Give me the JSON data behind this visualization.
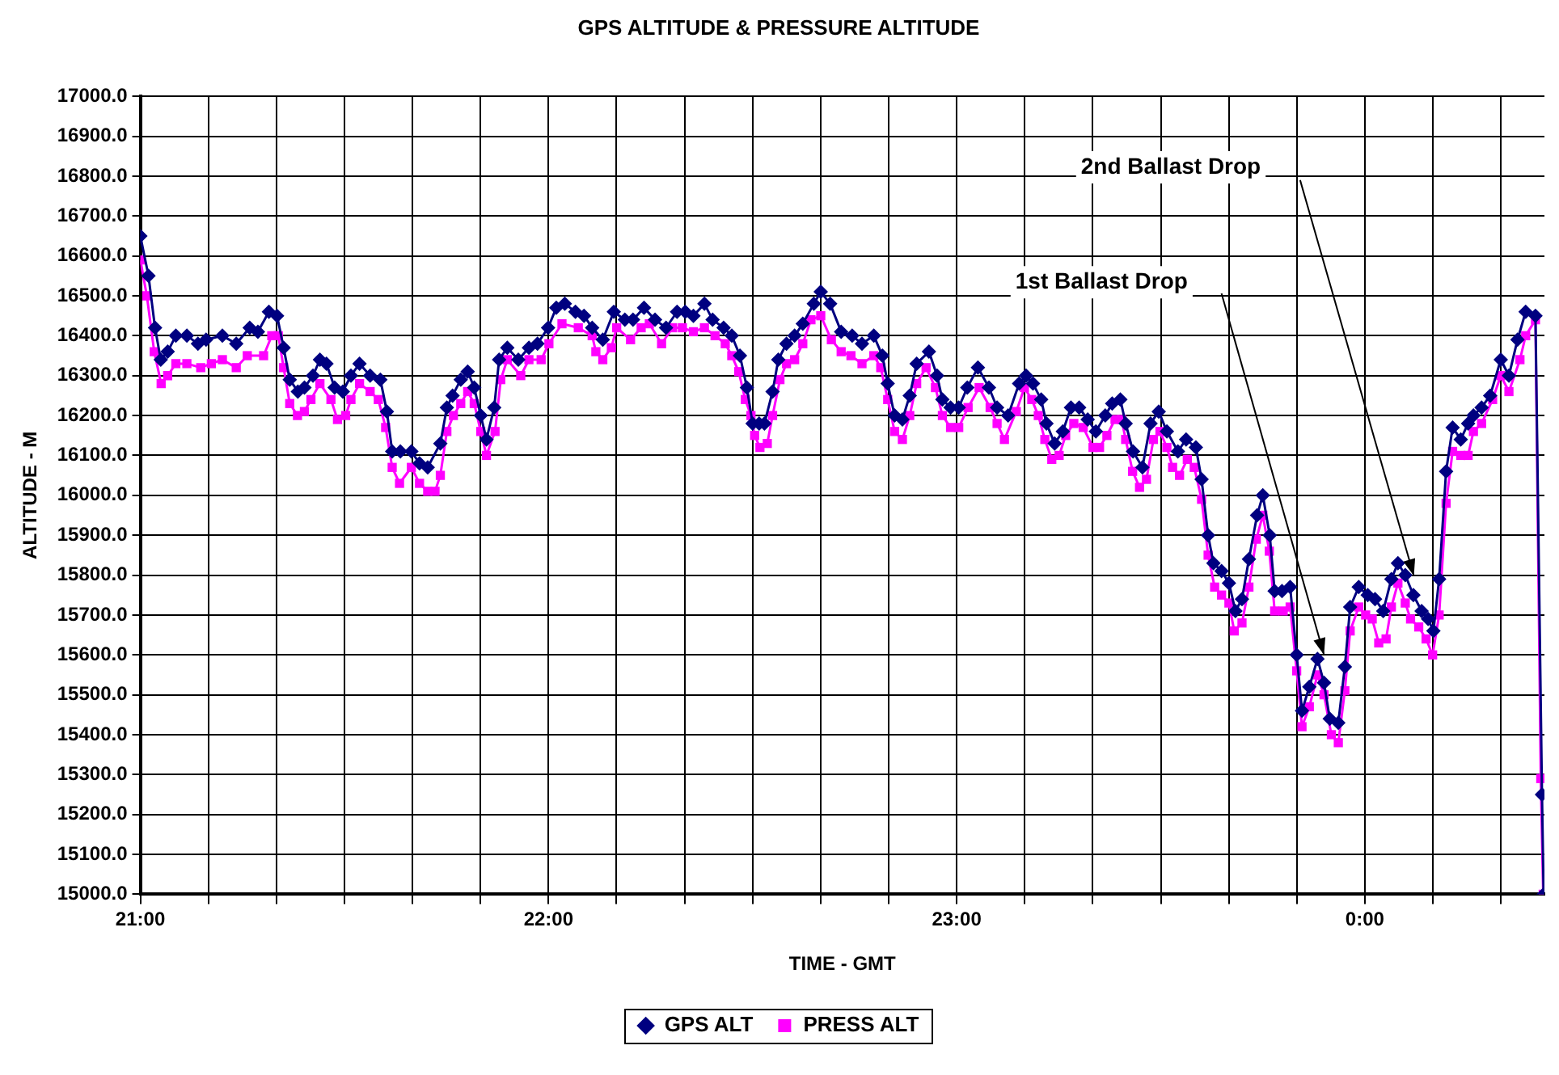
{
  "chart_data": {
    "type": "line",
    "title": "GPS ALTITUDE & PRESSURE ALTITUDE",
    "xlabel": "TIME - GMT",
    "ylabel": "ALTITUDE - M",
    "xlim": [
      21,
      24.44
    ],
    "ylim": [
      15000,
      17000
    ],
    "xticks": [
      {
        "value": 21,
        "label": "21:00"
      },
      {
        "value": 21.1667,
        "label": null
      },
      {
        "value": 21.3333,
        "label": null
      },
      {
        "value": 21.5,
        "label": null
      },
      {
        "value": 21.6667,
        "label": null
      },
      {
        "value": 21.8333,
        "label": null
      },
      {
        "value": 22,
        "label": "22:00"
      },
      {
        "value": 22.1667,
        "label": null
      },
      {
        "value": 22.3333,
        "label": null
      },
      {
        "value": 22.5,
        "label": null
      },
      {
        "value": 22.6667,
        "label": null
      },
      {
        "value": 22.8333,
        "label": null
      },
      {
        "value": 23,
        "label": "23:00"
      },
      {
        "value": 23.1667,
        "label": null
      },
      {
        "value": 23.3333,
        "label": null
      },
      {
        "value": 23.5,
        "label": null
      },
      {
        "value": 23.6667,
        "label": null
      },
      {
        "value": 23.8333,
        "label": null
      },
      {
        "value": 24,
        "label": "0:00"
      },
      {
        "value": 24.1667,
        "label": null
      },
      {
        "value": 24.3333,
        "label": null
      }
    ],
    "yticks": [
      {
        "value": 15000,
        "label": "15000.0"
      },
      {
        "value": 15100,
        "label": "15100.0"
      },
      {
        "value": 15200,
        "label": "15200.0"
      },
      {
        "value": 15300,
        "label": "15300.0"
      },
      {
        "value": 15400,
        "label": "15400.0"
      },
      {
        "value": 15500,
        "label": "15500.0"
      },
      {
        "value": 15600,
        "label": "15600.0"
      },
      {
        "value": 15700,
        "label": "15700.0"
      },
      {
        "value": 15800,
        "label": "15800.0"
      },
      {
        "value": 15900,
        "label": "15900.0"
      },
      {
        "value": 16000,
        "label": "16000.0"
      },
      {
        "value": 16100,
        "label": "16100.0"
      },
      {
        "value": 16200,
        "label": "16200.0"
      },
      {
        "value": 16300,
        "label": "16300.0"
      },
      {
        "value": 16400,
        "label": "16400.0"
      },
      {
        "value": 16500,
        "label": "16500.0"
      },
      {
        "value": 16600,
        "label": "16600.0"
      },
      {
        "value": 16700,
        "label": "16700.0"
      },
      {
        "value": 16800,
        "label": "16800.0"
      },
      {
        "value": 16900,
        "label": "16900.0"
      },
      {
        "value": 17000,
        "label": "17000.0"
      }
    ],
    "grid": true,
    "legend": "bottom",
    "line_style": "solid",
    "annotations": [
      "1st Ballast Drop",
      "2nd Ballast Drop"
    ],
    "series": [
      {
        "name": "GPS ALT",
        "color": "#000080",
        "marker": "diamond",
        "x": [
          21.0,
          21.02,
          21.036,
          21.05,
          21.067,
          21.087,
          21.114,
          21.141,
          21.161,
          21.201,
          21.235,
          21.268,
          21.288,
          21.315,
          21.335,
          21.351,
          21.366,
          21.386,
          21.402,
          21.423,
          21.44,
          21.456,
          21.476,
          21.496,
          21.516,
          21.537,
          21.563,
          21.588,
          21.604,
          21.617,
          21.637,
          21.664,
          21.684,
          21.704,
          21.735,
          21.751,
          21.765,
          21.785,
          21.802,
          21.818,
          21.834,
          21.848,
          21.867,
          21.879,
          21.899,
          21.926,
          21.952,
          21.973,
          21.999,
          22.019,
          22.04,
          22.066,
          22.087,
          22.107,
          22.133,
          22.16,
          22.187,
          22.207,
          22.234,
          22.261,
          22.288,
          22.315,
          22.335,
          22.355,
          22.382,
          22.402,
          22.429,
          22.449,
          22.469,
          22.486,
          22.5,
          22.516,
          22.529,
          22.549,
          22.563,
          22.583,
          22.603,
          22.623,
          22.65,
          22.667,
          22.69,
          22.717,
          22.744,
          22.768,
          22.797,
          22.818,
          22.831,
          22.848,
          22.867,
          22.885,
          22.902,
          22.932,
          22.952,
          22.965,
          22.985,
          23.005,
          23.026,
          23.052,
          23.079,
          23.099,
          23.126,
          23.153,
          23.17,
          23.187,
          23.207,
          23.22,
          23.24,
          23.26,
          23.28,
          23.3,
          23.321,
          23.341,
          23.364,
          23.381,
          23.401,
          23.414,
          23.432,
          23.455,
          23.475,
          23.495,
          23.515,
          23.542,
          23.562,
          23.586,
          23.6,
          23.616,
          23.629,
          23.649,
          23.667,
          23.683,
          23.699,
          23.716,
          23.736,
          23.75,
          23.767,
          23.779,
          23.797,
          23.817,
          23.833,
          23.846,
          23.864,
          23.884,
          23.9,
          23.914,
          23.935,
          23.951,
          23.964,
          23.985,
          24.007,
          24.025,
          24.045,
          24.065,
          24.081,
          24.099,
          24.119,
          24.139,
          24.155,
          24.168,
          24.182,
          24.199,
          24.215,
          24.235,
          24.253,
          24.266,
          24.286,
          24.307,
          24.333,
          24.353,
          24.374,
          24.394,
          24.418,
          24.434,
          24.438
        ],
        "values": [
          16650,
          16550,
          16420,
          16340,
          16360,
          16400,
          16400,
          16380,
          16390,
          16400,
          16380,
          16420,
          16410,
          16460,
          16450,
          16370,
          16290,
          16260,
          16270,
          16300,
          16340,
          16330,
          16270,
          16260,
          16300,
          16330,
          16300,
          16290,
          16210,
          16110,
          16110,
          16110,
          16080,
          16070,
          16130,
          16220,
          16250,
          16290,
          16310,
          16270,
          16200,
          16140,
          16220,
          16340,
          16370,
          16340,
          16370,
          16380,
          16420,
          16470,
          16480,
          16460,
          16450,
          16420,
          16390,
          16460,
          16440,
          16440,
          16470,
          16440,
          16420,
          16460,
          16460,
          16450,
          16480,
          16440,
          16420,
          16400,
          16350,
          16270,
          16180,
          16180,
          16180,
          16260,
          16340,
          16380,
          16400,
          16430,
          16480,
          16510,
          16480,
          16410,
          16400,
          16380,
          16400,
          16350,
          16280,
          16200,
          16190,
          16250,
          16330,
          16360,
          16300,
          16240,
          16220,
          16220,
          16270,
          16320,
          16270,
          16220,
          16200,
          16280,
          16300,
          16280,
          16240,
          16180,
          16130,
          16160,
          16220,
          16220,
          16190,
          16160,
          16200,
          16230,
          16240,
          16180,
          16110,
          16070,
          16180,
          16210,
          16160,
          16110,
          16140,
          16120,
          16040,
          15900,
          15830,
          15810,
          15780,
          15710,
          15740,
          15840,
          15950,
          16000,
          15900,
          15760,
          15760,
          15770,
          15600,
          15460,
          15520,
          15590,
          15530,
          15440,
          15430,
          15570,
          15720,
          15770,
          15750,
          15740,
          15710,
          15790,
          15830,
          15800,
          15750,
          15710,
          15690,
          15660,
          15790,
          16060,
          16170,
          16140,
          16180,
          16200,
          16220,
          16250,
          16340,
          16300,
          16390,
          16460,
          16450,
          15250,
          15000
        ]
      },
      {
        "name": "PRESS ALT",
        "color": "#ff00ff",
        "marker": "square",
        "x": [
          21.0,
          21.016,
          21.034,
          21.051,
          21.067,
          21.087,
          21.114,
          21.148,
          21.174,
          21.201,
          21.235,
          21.262,
          21.302,
          21.322,
          21.338,
          21.351,
          21.366,
          21.385,
          21.402,
          21.418,
          21.44,
          21.467,
          21.483,
          21.503,
          21.516,
          21.537,
          21.563,
          21.583,
          21.601,
          21.617,
          21.635,
          21.664,
          21.684,
          21.704,
          21.722,
          21.735,
          21.751,
          21.767,
          21.785,
          21.802,
          21.818,
          21.834,
          21.848,
          21.869,
          21.883,
          21.899,
          21.932,
          21.952,
          21.982,
          22.001,
          22.033,
          22.073,
          22.107,
          22.116,
          22.133,
          22.154,
          22.167,
          22.201,
          22.227,
          22.247,
          22.277,
          22.304,
          22.328,
          22.355,
          22.382,
          22.408,
          22.433,
          22.449,
          22.466,
          22.482,
          22.496,
          22.505,
          22.518,
          22.536,
          22.549,
          22.567,
          22.583,
          22.603,
          22.623,
          22.643,
          22.667,
          22.693,
          22.717,
          22.741,
          22.768,
          22.797,
          22.814,
          22.831,
          22.848,
          22.867,
          22.885,
          22.902,
          22.925,
          22.948,
          22.965,
          22.985,
          23.005,
          23.028,
          23.055,
          23.082,
          23.099,
          23.117,
          23.146,
          23.166,
          23.184,
          23.2,
          23.216,
          23.233,
          23.251,
          23.267,
          23.287,
          23.31,
          23.334,
          23.35,
          23.368,
          23.388,
          23.404,
          23.414,
          23.431,
          23.448,
          23.465,
          23.482,
          23.498,
          23.515,
          23.529,
          23.546,
          23.565,
          23.582,
          23.6,
          23.616,
          23.632,
          23.649,
          23.667,
          23.68,
          23.699,
          23.716,
          23.734,
          23.75,
          23.766,
          23.779,
          23.8,
          23.817,
          23.833,
          23.846,
          23.864,
          23.884,
          23.9,
          23.918,
          23.935,
          23.951,
          23.964,
          23.985,
          24.002,
          24.018,
          24.034,
          24.052,
          24.065,
          24.081,
          24.099,
          24.112,
          24.132,
          24.15,
          24.166,
          24.182,
          24.199,
          24.215,
          24.235,
          24.253,
          24.266,
          24.286,
          24.313,
          24.333,
          24.353,
          24.38,
          24.394,
          24.418,
          24.431,
          24.437
        ],
        "values": [
          16590,
          16500,
          16360,
          16280,
          16300,
          16330,
          16330,
          16320,
          16330,
          16340,
          16320,
          16350,
          16350,
          16400,
          16400,
          16320,
          16230,
          16200,
          16210,
          16240,
          16280,
          16240,
          16190,
          16200,
          16240,
          16280,
          16260,
          16240,
          16170,
          16070,
          16030,
          16070,
          16030,
          16010,
          16010,
          16050,
          16160,
          16200,
          16230,
          16260,
          16230,
          16160,
          16100,
          16160,
          16290,
          16340,
          16300,
          16340,
          16340,
          16380,
          16430,
          16420,
          16400,
          16360,
          16340,
          16370,
          16420,
          16390,
          16420,
          16430,
          16380,
          16420,
          16420,
          16410,
          16420,
          16400,
          16380,
          16350,
          16310,
          16240,
          16200,
          16150,
          16120,
          16130,
          16200,
          16290,
          16330,
          16340,
          16380,
          16440,
          16450,
          16390,
          16360,
          16350,
          16330,
          16350,
          16320,
          16240,
          16160,
          16140,
          16200,
          16280,
          16320,
          16270,
          16200,
          16170,
          16170,
          16220,
          16270,
          16220,
          16180,
          16140,
          16210,
          16270,
          16240,
          16200,
          16140,
          16090,
          16100,
          16150,
          16180,
          16170,
          16120,
          16120,
          16150,
          16190,
          16190,
          16140,
          16060,
          16020,
          16040,
          16140,
          16160,
          16120,
          16070,
          16050,
          16090,
          16070,
          15990,
          15850,
          15770,
          15750,
          15730,
          15660,
          15680,
          15770,
          15890,
          15950,
          15860,
          15710,
          15710,
          15720,
          15560,
          15420,
          15470,
          15550,
          15500,
          15400,
          15380,
          15510,
          15660,
          15720,
          15700,
          15690,
          15630,
          15640,
          15720,
          15780,
          15730,
          15690,
          15670,
          15640,
          15600,
          15700,
          15980,
          16110,
          16100,
          16100,
          16160,
          16180,
          16240,
          16300,
          16260,
          16340,
          16400,
          16440,
          15290,
          15000
        ]
      }
    ]
  }
}
